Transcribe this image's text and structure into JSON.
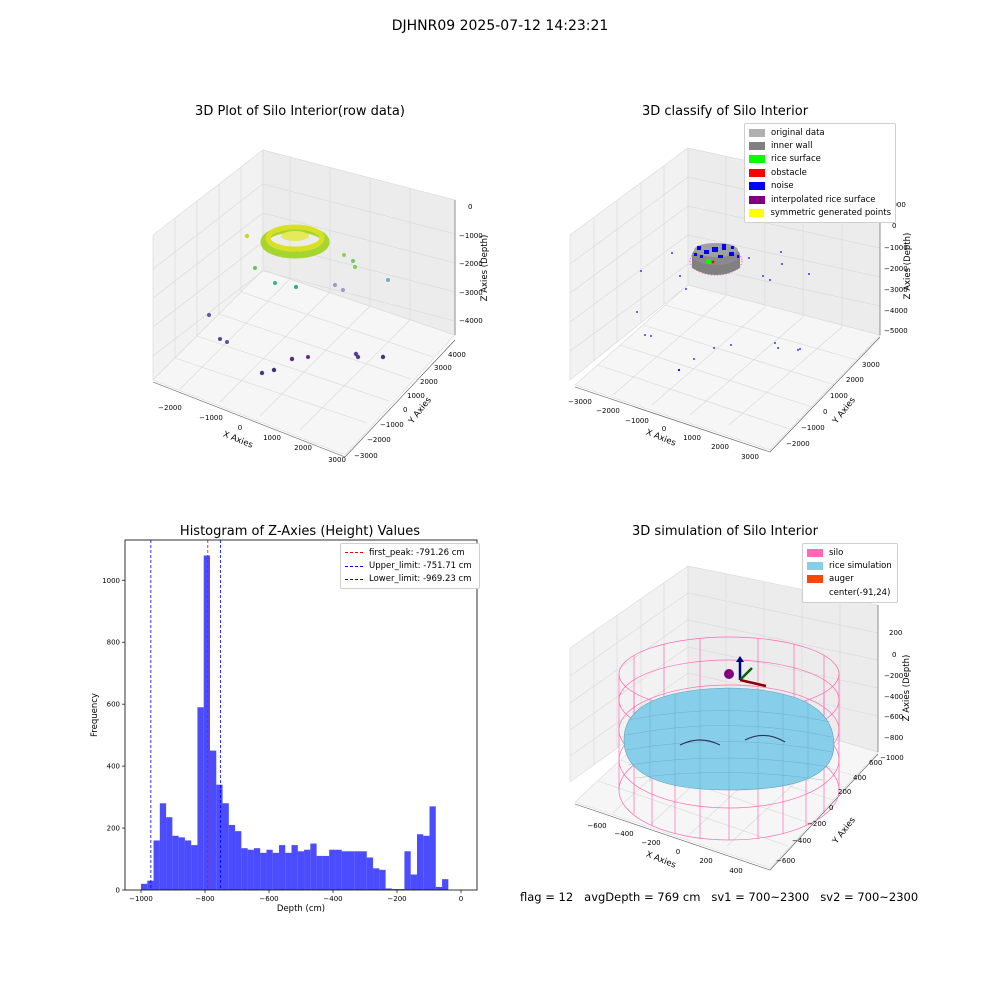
{
  "suptitle": "DJHNR09 2025-07-12 14:23:21",
  "status": {
    "flag": "flag = 12",
    "avg": "avgDepth = 769 cm",
    "sv1": "sv1 = 700~2300",
    "sv2": "sv2 = 700~2300"
  },
  "chart_data": [
    {
      "type": "scatter",
      "title": "3D Plot of Silo Interior(row data)",
      "xlabel": "X Axies",
      "ylabel": "Y Axies",
      "zlabel": "Z Axies (Depth)",
      "x_ticks": [
        "−2000",
        "−1000",
        "0",
        "1000",
        "2000",
        "3000"
      ],
      "y_ticks": [
        "−3000",
        "−2000",
        "−1000",
        "0",
        "1000",
        "2000",
        "3000",
        "4000"
      ],
      "z_ticks": [
        "0",
        "−1000",
        "−2000",
        "−3000",
        "−4000"
      ],
      "colormap": "viridis"
    },
    {
      "type": "scatter",
      "title": "3D classify of Silo Interior",
      "xlabel": "X Axies",
      "ylabel": "Y Axies",
      "zlabel": "Z Axies (Depth)",
      "x_ticks": [
        "−3000",
        "−2000",
        "−1000",
        "0",
        "1000",
        "2000",
        "3000"
      ],
      "y_ticks": [
        "−2000",
        "−1000",
        "0",
        "1000",
        "2000",
        "3000"
      ],
      "z_ticks": [
        "1000",
        "0",
        "−1000",
        "−2000",
        "−3000",
        "−4000",
        "−5000"
      ],
      "legend": [
        {
          "label": "original data",
          "color": "#b0b0b0"
        },
        {
          "label": "inner wall",
          "color": "#808080"
        },
        {
          "label": "rice surface",
          "color": "#00ff00"
        },
        {
          "label": "obstacle",
          "color": "#ff0000"
        },
        {
          "label": "noise",
          "color": "#0000ff"
        },
        {
          "label": "interpolated rice surface",
          "color": "#800080"
        },
        {
          "label": "symmetric generated points",
          "color": "#ffff00"
        }
      ]
    },
    {
      "type": "bar",
      "title": "Histogram of Z-Axies (Height) Values",
      "xlabel": "Depth (cm)",
      "ylabel": "Frequency",
      "xlim": [
        -1050,
        50
      ],
      "ylim": [
        0,
        1130
      ],
      "x_ticks": [
        -1000,
        -800,
        -600,
        -400,
        -200,
        0
      ],
      "x_tick_labels": [
        "−1000",
        "−800",
        "−600",
        "−400",
        "−200",
        "0"
      ],
      "y_ticks": [
        0,
        200,
        400,
        600,
        800,
        1000
      ],
      "bar_color": "#0000ff",
      "bin_start": -1000,
      "bin_width": 19.6,
      "values": [
        20,
        30,
        160,
        280,
        235,
        175,
        170,
        160,
        145,
        590,
        1080,
        450,
        340,
        280,
        210,
        190,
        135,
        130,
        135,
        120,
        130,
        120,
        145,
        120,
        145,
        125,
        130,
        150,
        110,
        110,
        130,
        130,
        125,
        125,
        125,
        125,
        105,
        70,
        65,
        5,
        3,
        3,
        125,
        50,
        180,
        175,
        270,
        10,
        35
      ],
      "vlines": [
        {
          "label": "first_peak: -791.26 cm",
          "x": -791.26,
          "color": "#ff0000"
        },
        {
          "label": "Upper_limit: -751.71 cm",
          "x": -751.71,
          "color": "#0000ff"
        },
        {
          "label": "Lower_limit: -969.23 cm",
          "x": -969.23,
          "color": "#0000ff"
        }
      ]
    },
    {
      "type": "surface",
      "title": "3D simulation of Silo Interior",
      "xlabel": "X Axies",
      "ylabel": "Y Axies",
      "zlabel": "Z Axies (Depth)",
      "x_ticks": [
        "−600",
        "−400",
        "−200",
        "0",
        "200",
        "400"
      ],
      "y_ticks": [
        "−600",
        "−400",
        "−200",
        "0",
        "200",
        "400",
        "600"
      ],
      "z_ticks": [
        "200",
        "0",
        "−200",
        "−400",
        "−600",
        "−800",
        "−1000"
      ],
      "legend": [
        {
          "label": "silo",
          "color": "#ff69b4"
        },
        {
          "label": "rice simulation",
          "color": "#87ceeb"
        },
        {
          "label": "auger",
          "color": "#ff4500"
        },
        {
          "label": "center(-91,24)",
          "color": "#ffffff"
        }
      ]
    }
  ]
}
